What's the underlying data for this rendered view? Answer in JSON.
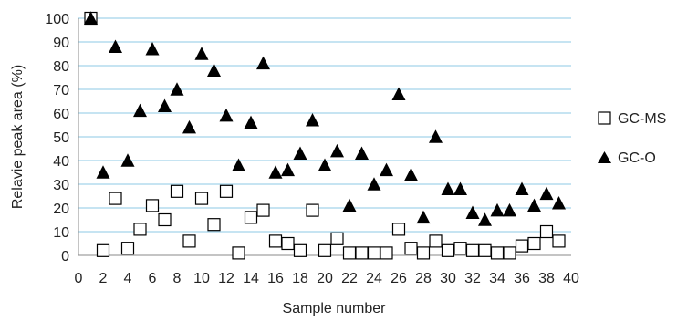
{
  "chart_data": {
    "type": "scatter",
    "xlabel": "Sample number",
    "ylabel": "Relavie peak area (%)",
    "xlim": [
      0,
      40
    ],
    "ylim": [
      0,
      100
    ],
    "x_ticks": [
      "0",
      "2",
      "4",
      "6",
      "8",
      "10",
      "12",
      "14",
      "16",
      "18",
      "20",
      "22",
      "24",
      "26",
      "28",
      "30",
      "32",
      "34",
      "36",
      "38",
      "40"
    ],
    "y_ticks": [
      "0",
      "10",
      "20",
      "30",
      "40",
      "50",
      "60",
      "70",
      "80",
      "90",
      "100"
    ],
    "grid": "horizontal",
    "legend_position": "right",
    "series": [
      {
        "name": "GC-MS",
        "marker": "open-square",
        "color": "#000000",
        "points": [
          [
            1,
            100
          ],
          [
            2,
            2
          ],
          [
            3,
            24
          ],
          [
            4,
            3
          ],
          [
            5,
            11
          ],
          [
            6,
            21
          ],
          [
            7,
            15
          ],
          [
            8,
            27
          ],
          [
            9,
            6
          ],
          [
            10,
            24
          ],
          [
            11,
            13
          ],
          [
            12,
            27
          ],
          [
            13,
            1
          ],
          [
            14,
            16
          ],
          [
            15,
            19
          ],
          [
            16,
            6
          ],
          [
            17,
            5
          ],
          [
            18,
            2
          ],
          [
            19,
            19
          ],
          [
            20,
            2
          ],
          [
            21,
            7
          ],
          [
            22,
            1
          ],
          [
            23,
            1
          ],
          [
            24,
            1
          ],
          [
            25,
            1
          ],
          [
            26,
            11
          ],
          [
            27,
            3
          ],
          [
            28,
            1
          ],
          [
            29,
            6
          ],
          [
            30,
            2
          ],
          [
            31,
            3
          ],
          [
            32,
            2
          ],
          [
            33,
            2
          ],
          [
            34,
            1
          ],
          [
            35,
            1
          ],
          [
            36,
            4
          ],
          [
            37,
            5
          ],
          [
            38,
            10
          ],
          [
            39,
            6
          ]
        ]
      },
      {
        "name": "GC-O",
        "marker": "filled-triangle",
        "color": "#000000",
        "points": [
          [
            1,
            100
          ],
          [
            2,
            35
          ],
          [
            3,
            88
          ],
          [
            4,
            40
          ],
          [
            5,
            61
          ],
          [
            6,
            87
          ],
          [
            7,
            63
          ],
          [
            8,
            70
          ],
          [
            9,
            54
          ],
          [
            10,
            85
          ],
          [
            11,
            78
          ],
          [
            12,
            59
          ],
          [
            13,
            38
          ],
          [
            14,
            56
          ],
          [
            15,
            81
          ],
          [
            16,
            35
          ],
          [
            17,
            36
          ],
          [
            18,
            43
          ],
          [
            19,
            57
          ],
          [
            20,
            38
          ],
          [
            21,
            44
          ],
          [
            22,
            21
          ],
          [
            23,
            43
          ],
          [
            24,
            30
          ],
          [
            25,
            36
          ],
          [
            26,
            68
          ],
          [
            27,
            34
          ],
          [
            28,
            16
          ],
          [
            29,
            50
          ],
          [
            30,
            28
          ],
          [
            31,
            28
          ],
          [
            32,
            18
          ],
          [
            33,
            15
          ],
          [
            34,
            19
          ],
          [
            35,
            19
          ],
          [
            36,
            28
          ],
          [
            37,
            21
          ],
          [
            38,
            26
          ],
          [
            39,
            22
          ]
        ]
      }
    ]
  }
}
